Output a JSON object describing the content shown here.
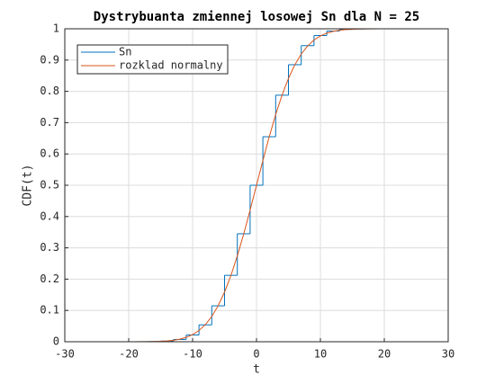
{
  "chart_data": {
    "type": "line",
    "title": "Dystrybuanta zmiennej losowej Sn dla N = 25",
    "xlabel": "t",
    "ylabel": "CDF(t)",
    "xlim": [
      -30,
      30
    ],
    "xticks": [
      -30,
      -20,
      -10,
      0,
      10,
      20,
      30
    ],
    "ylim": [
      0,
      1
    ],
    "yticks": [
      0,
      0.1,
      0.2,
      0.3,
      0.4,
      0.5,
      0.6,
      0.7,
      0.8,
      0.9,
      1
    ],
    "grid": true,
    "legend": "top-left",
    "series": [
      {
        "name": "Sn",
        "color": "#0072bd",
        "style": "stairs",
        "x": [
          -25,
          -23,
          -21,
          -19,
          -17,
          -15,
          -13,
          -11,
          -9,
          -7,
          -5,
          -3,
          -1,
          1,
          3,
          5,
          7,
          9,
          11,
          13,
          15,
          17,
          19,
          21,
          23,
          25
        ],
        "values": [
          0,
          0,
          0,
          0.0001,
          0.0005,
          0.002,
          0.0073,
          0.0216,
          0.0539,
          0.1148,
          0.2122,
          0.345,
          0.5,
          0.655,
          0.7878,
          0.8852,
          0.9461,
          0.9784,
          0.9927,
          0.998,
          0.9995,
          0.9999,
          1,
          1,
          1,
          1
        ]
      },
      {
        "name": "rozklad normalny",
        "color": "#d95319",
        "style": "line",
        "x": [
          -25,
          -24,
          -23,
          -22,
          -21,
          -20,
          -19,
          -18,
          -17,
          -16,
          -15,
          -14,
          -13,
          -12,
          -11,
          -10,
          -9,
          -8,
          -7,
          -6,
          -5,
          -4,
          -3,
          -2,
          -1,
          0,
          1,
          2,
          3,
          4,
          5,
          6,
          7,
          8,
          9,
          10,
          11,
          12,
          13,
          14,
          15,
          16,
          17,
          18,
          19,
          20,
          21,
          22,
          23,
          24,
          25
        ],
        "values": [
          0,
          0,
          0,
          0,
          0,
          0,
          0.0001,
          0.0002,
          0.0003,
          0.0007,
          0.0013,
          0.0026,
          0.0047,
          0.0082,
          0.0139,
          0.0228,
          0.0359,
          0.0548,
          0.0808,
          0.1151,
          0.1587,
          0.2119,
          0.2743,
          0.3446,
          0.4207,
          0.5,
          0.5793,
          0.6554,
          0.7257,
          0.7881,
          0.8413,
          0.8849,
          0.9192,
          0.9452,
          0.9641,
          0.9772,
          0.9861,
          0.9918,
          0.9953,
          0.9974,
          0.9987,
          0.9993,
          0.9997,
          0.9998,
          0.9999,
          1,
          1,
          1,
          1,
          1,
          1
        ]
      }
    ]
  }
}
